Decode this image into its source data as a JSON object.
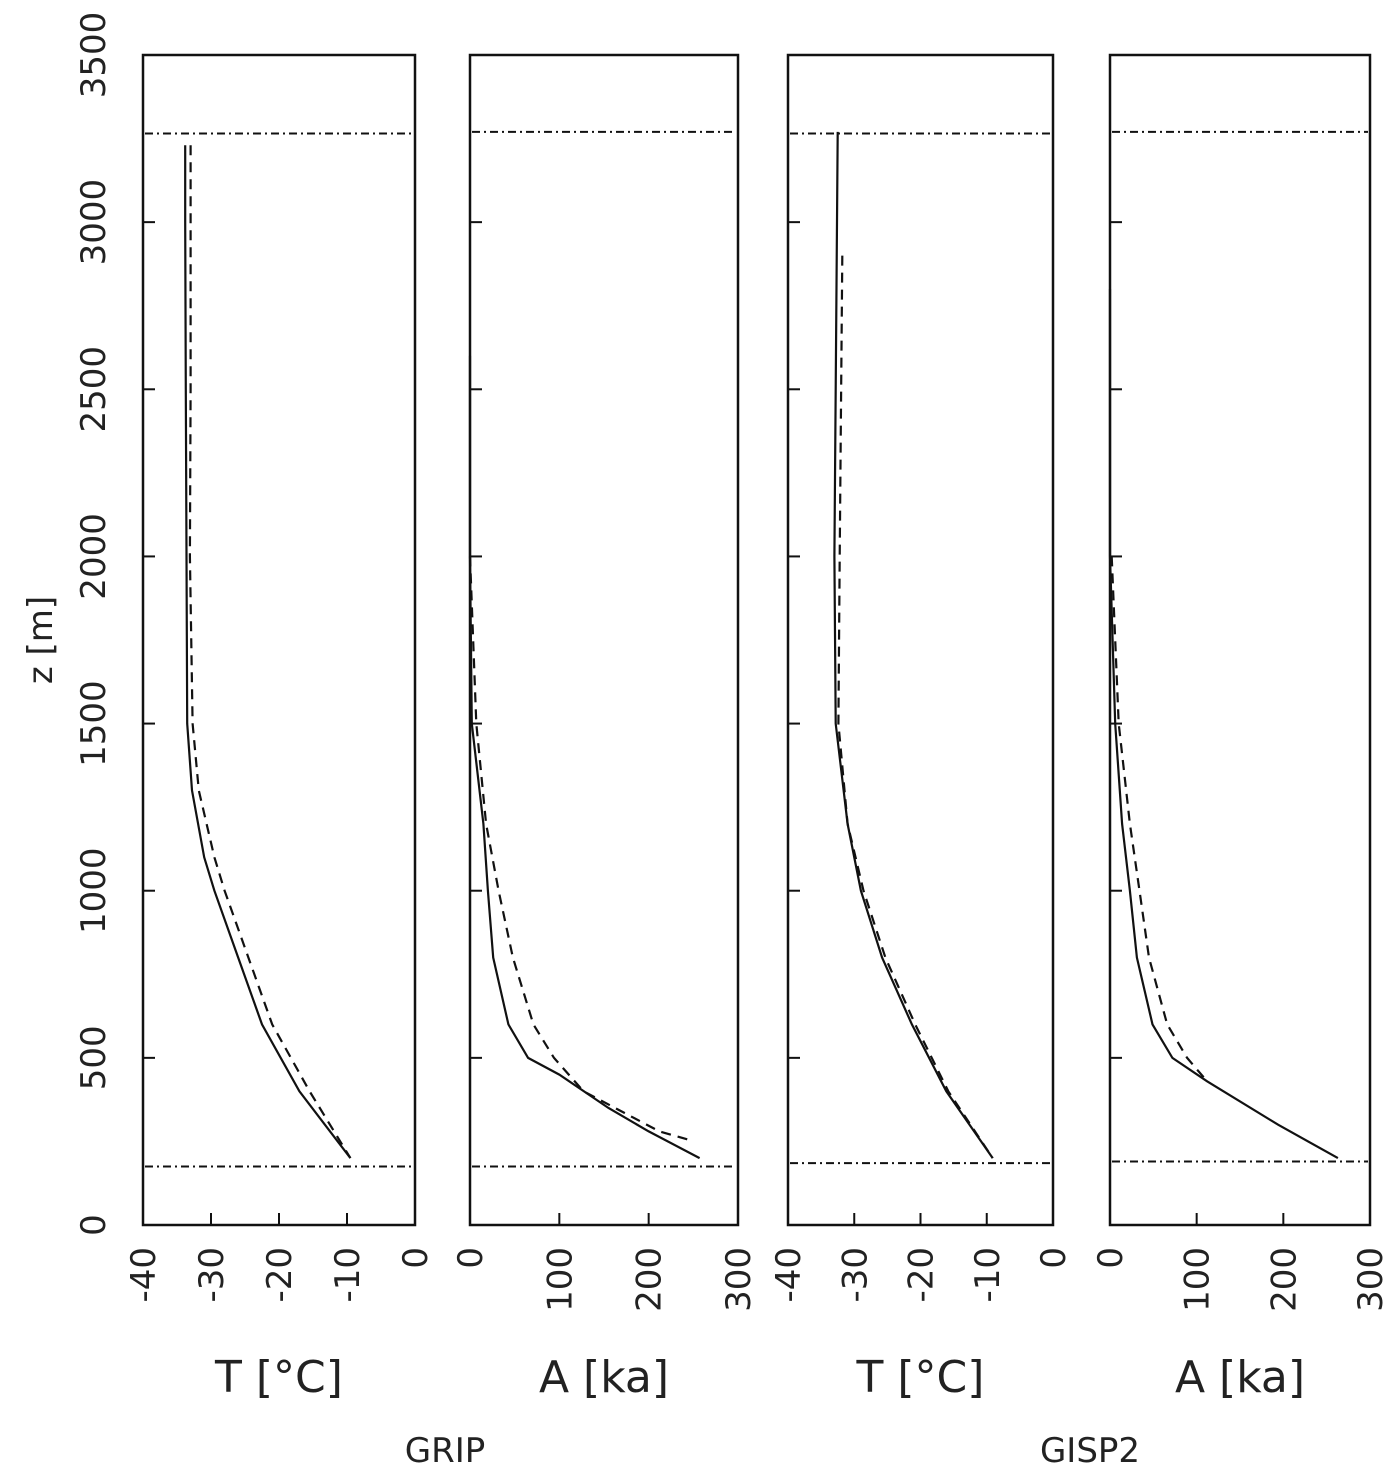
{
  "chart_data": [
    {
      "type": "line",
      "xlabel": "T [°C]",
      "ylabel": "z [m]",
      "xlim": [
        -40,
        0
      ],
      "xticks": [
        -40,
        -30,
        -20,
        -10,
        0
      ],
      "ylim": [
        0,
        3500
      ],
      "yticks": [
        0,
        500,
        1000,
        1500,
        2000,
        2500,
        3000,
        3500
      ],
      "hlines": [
        3265,
        175
      ],
      "series": [
        {
          "style": "solid",
          "x": [
            -33.8,
            -33.8,
            -33.7,
            -33.6,
            -33.5,
            -32.8,
            -31,
            -29.5,
            -26,
            -22.5,
            -17,
            -9.5
          ],
          "values": [
            3230,
            3000,
            2500,
            2000,
            1500,
            1300,
            1100,
            1000,
            800,
            600,
            400,
            200
          ]
        },
        {
          "style": "dashed",
          "x": [
            -33,
            -33,
            -33,
            -33.1,
            -32.7,
            -31.8,
            -29.5,
            -28,
            -24.5,
            -21,
            -15.5,
            -9.5
          ],
          "values": [
            3230,
            3000,
            2500,
            2000,
            1500,
            1300,
            1100,
            1000,
            800,
            600,
            400,
            200
          ]
        }
      ]
    },
    {
      "type": "line",
      "xlabel": "A [ka]",
      "xlim": [
        0,
        300
      ],
      "xticks": [
        0,
        100,
        200,
        300
      ],
      "ylim": [
        0,
        3500
      ],
      "hlines": [
        3270,
        175
      ],
      "series": [
        {
          "style": "solid",
          "x": [
            0,
            0,
            2,
            15,
            20,
            26,
            43,
            65,
            100,
            155,
            200,
            257
          ],
          "values": [
            2600,
            2000,
            1500,
            1200,
            1000,
            800,
            600,
            500,
            450,
            350,
            280,
            200
          ]
        },
        {
          "style": "dashed",
          "x": [
            0,
            7,
            18,
            32,
            48,
            71,
            94,
            127,
            212,
            245
          ],
          "values": [
            2000,
            1500,
            1200,
            1000,
            800,
            600,
            500,
            400,
            280,
            255
          ]
        }
      ]
    },
    {
      "type": "line",
      "xlabel": "T [°C]",
      "xlim": [
        -40,
        0
      ],
      "xticks": [
        -40,
        -30,
        -20,
        -10,
        0
      ],
      "ylim": [
        0,
        3500
      ],
      "hlines": [
        3265,
        185
      ],
      "series": [
        {
          "style": "solid",
          "x": [
            -32.5,
            -33,
            -32.8,
            -31,
            -29,
            -25.8,
            -21.3,
            -16.1,
            -9.1
          ],
          "values": [
            3270,
            2000,
            1500,
            1200,
            1000,
            800,
            600,
            400,
            200
          ]
        },
        {
          "style": "dashed",
          "x": [
            -31.8,
            -32.2,
            -32.4,
            -31,
            -28.6,
            -25.3,
            -20.8,
            -15.8,
            -9.1
          ],
          "values": [
            2900,
            2000,
            1500,
            1200,
            1000,
            800,
            600,
            400,
            200
          ]
        }
      ]
    },
    {
      "type": "line",
      "xlabel": "A [ka]",
      "xlim": [
        0,
        300
      ],
      "xticks": [
        0,
        100,
        200,
        300
      ],
      "ylim": [
        0,
        3500
      ],
      "hlines": [
        3270,
        190
      ],
      "series": [
        {
          "style": "solid",
          "x": [
            0,
            0,
            6,
            14,
            23,
            31,
            49,
            72,
            112,
            194,
            263
          ],
          "values": [
            2800,
            2000,
            1500,
            1200,
            1000,
            800,
            600,
            500,
            430,
            300,
            200
          ]
        },
        {
          "style": "dashed",
          "x": [
            2,
            10,
            23,
            34,
            45,
            66,
            89,
            112
          ],
          "values": [
            2000,
            1500,
            1200,
            1000,
            800,
            600,
            500,
            430
          ]
        }
      ]
    }
  ],
  "captions": [
    "GRIP",
    "GISP2"
  ]
}
